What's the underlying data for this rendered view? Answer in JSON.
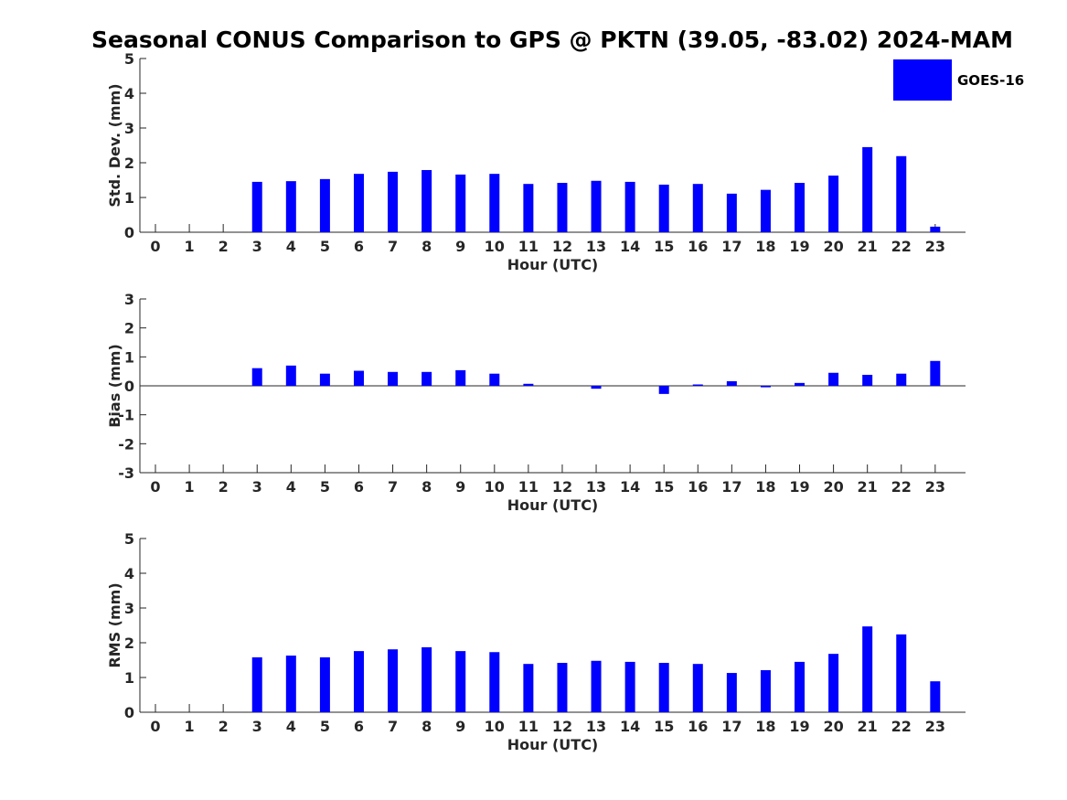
{
  "chart_data": {
    "title": "Seasonal CONUS Comparison to GPS @ PKTN (39.05, -83.02) 2024-MAM",
    "type": "bar",
    "legend": {
      "entries": [
        "GOES-16"
      ],
      "placement": "top-right"
    },
    "colors": {
      "series": "#0000ff",
      "axes": "#262626"
    },
    "grid": false,
    "panels": [
      {
        "type": "bar",
        "xlabel": "Hour (UTC)",
        "ylabel": "Std. Dev. (mm)",
        "ylim": [
          0,
          5
        ],
        "yticks": [
          "0",
          "1",
          "2",
          "3",
          "4",
          "5"
        ],
        "categories": [
          "0",
          "1",
          "2",
          "3",
          "4",
          "5",
          "6",
          "7",
          "8",
          "9",
          "10",
          "11",
          "12",
          "13",
          "14",
          "15",
          "16",
          "17",
          "18",
          "19",
          "20",
          "21",
          "22",
          "23"
        ],
        "series": [
          {
            "name": "GOES-16",
            "values": [
              null,
              null,
              null,
              1.45,
              1.47,
              1.53,
              1.68,
              1.74,
              1.79,
              1.66,
              1.68,
              1.39,
              1.42,
              1.48,
              1.45,
              1.37,
              1.39,
              1.11,
              1.22,
              1.42,
              1.63,
              2.45,
              2.19,
              0.16
            ]
          }
        ]
      },
      {
        "type": "bar",
        "xlabel": "Hour (UTC)",
        "ylabel": "Bias (mm)",
        "ylim": [
          -3,
          3
        ],
        "yticks": [
          "-3",
          "-2",
          "-1",
          "0",
          "1",
          "2",
          "3"
        ],
        "categories": [
          "0",
          "1",
          "2",
          "3",
          "4",
          "5",
          "6",
          "7",
          "8",
          "9",
          "10",
          "11",
          "12",
          "13",
          "14",
          "15",
          "16",
          "17",
          "18",
          "19",
          "20",
          "21",
          "22",
          "23"
        ],
        "series": [
          {
            "name": "GOES-16",
            "values": [
              null,
              null,
              null,
              0.61,
              0.7,
              0.42,
              0.52,
              0.48,
              0.48,
              0.54,
              0.42,
              0.07,
              0.0,
              -0.1,
              0.0,
              -0.28,
              0.04,
              0.16,
              -0.05,
              0.1,
              0.45,
              0.38,
              0.42,
              0.86
            ]
          }
        ]
      },
      {
        "type": "bar",
        "xlabel": "Hour (UTC)",
        "ylabel": "RMS (mm)",
        "ylim": [
          0,
          5
        ],
        "yticks": [
          "0",
          "1",
          "2",
          "3",
          "4",
          "5"
        ],
        "categories": [
          "0",
          "1",
          "2",
          "3",
          "4",
          "5",
          "6",
          "7",
          "8",
          "9",
          "10",
          "11",
          "12",
          "13",
          "14",
          "15",
          "16",
          "17",
          "18",
          "19",
          "20",
          "21",
          "22",
          "23"
        ],
        "series": [
          {
            "name": "GOES-16",
            "values": [
              null,
              null,
              null,
              1.58,
              1.63,
              1.58,
              1.76,
              1.81,
              1.87,
              1.76,
              1.73,
              1.39,
              1.42,
              1.48,
              1.45,
              1.42,
              1.39,
              1.13,
              1.21,
              1.45,
              1.68,
              2.47,
              2.24,
              0.89
            ]
          }
        ]
      }
    ]
  }
}
